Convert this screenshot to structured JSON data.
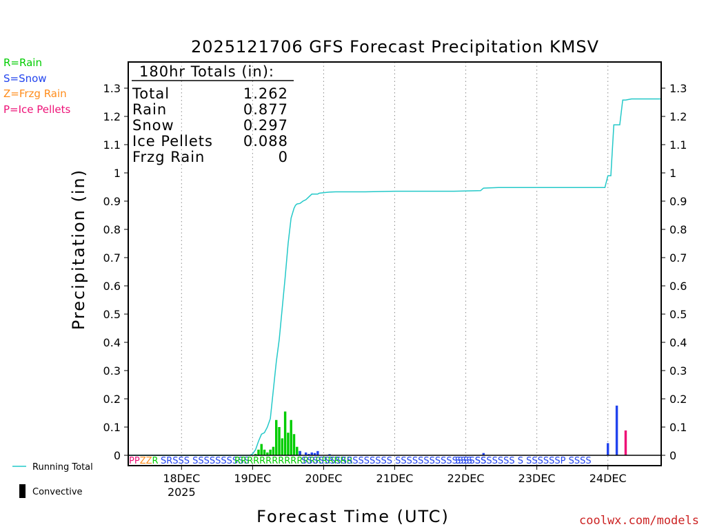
{
  "chart_data": {
    "type": "bar",
    "title": "2025121706 GFS Forecast Precipitation KMSV",
    "ylabel": "Precipitation (in)",
    "xlabel": "Forecast Time (UTC)",
    "ylim": [
      0,
      1.35
    ],
    "yticks": [
      "0",
      "0.1",
      "0.2",
      "0.3",
      "0.4",
      "0.5",
      "0.6",
      "0.7",
      "0.8",
      "0.9",
      "1",
      "1.1",
      "1.2",
      "1.3"
    ],
    "x_range_hours": [
      0,
      180
    ],
    "x_ticks": [
      {
        "hour": 18,
        "label": "18DEC",
        "sublabel": "2025"
      },
      {
        "hour": 42,
        "label": "19DEC",
        "sublabel": ""
      },
      {
        "hour": 66,
        "label": "20DEC",
        "sublabel": ""
      },
      {
        "hour": 90,
        "label": "21DEC",
        "sublabel": ""
      },
      {
        "hour": 114,
        "label": "22DEC",
        "sublabel": ""
      },
      {
        "hour": 138,
        "label": "23DEC",
        "sublabel": ""
      },
      {
        "hour": 162,
        "label": "24DEC",
        "sublabel": ""
      }
    ],
    "precip_type_legend": [
      {
        "code": "R",
        "text": "R=Rain",
        "color": "#00cc00"
      },
      {
        "code": "S",
        "text": "S=Snow",
        "color": "#2244ee"
      },
      {
        "code": "Z",
        "text": "Z=Frzg Rain",
        "color": "#ff8c1a"
      },
      {
        "code": "P",
        "text": "P=Ice Pellets",
        "color": "#ee1177"
      }
    ],
    "totals_box": {
      "header": "180hr Totals (in):",
      "rows": [
        {
          "label": "Total",
          "value": "1.262"
        },
        {
          "label": "Rain",
          "value": "0.877"
        },
        {
          "label": "Snow",
          "value": "0.297"
        },
        {
          "label": "Ice Pellets",
          "value": "0.088"
        },
        {
          "label": "Frzg Rain",
          "value": "0"
        }
      ]
    },
    "series": [
      {
        "name": "Rain (hourly)",
        "type": "R",
        "bars": [
          {
            "hour": 43,
            "value": 0.005
          },
          {
            "hour": 44,
            "value": 0.02
          },
          {
            "hour": 45,
            "value": 0.04
          },
          {
            "hour": 46,
            "value": 0.02
          },
          {
            "hour": 47,
            "value": 0.01
          },
          {
            "hour": 48,
            "value": 0.02
          },
          {
            "hour": 49,
            "value": 0.03
          },
          {
            "hour": 50,
            "value": 0.125
          },
          {
            "hour": 51,
            "value": 0.1
          },
          {
            "hour": 52,
            "value": 0.06
          },
          {
            "hour": 53,
            "value": 0.155
          },
          {
            "hour": 54,
            "value": 0.08
          },
          {
            "hour": 55,
            "value": 0.125
          },
          {
            "hour": 56,
            "value": 0.075
          },
          {
            "hour": 57,
            "value": 0.03
          },
          {
            "hour": 58,
            "value": 0.015
          }
        ]
      },
      {
        "name": "Snow (hourly)",
        "type": "S",
        "bars": [
          {
            "hour": 58,
            "value": 0.015
          },
          {
            "hour": 60,
            "value": 0.01
          },
          {
            "hour": 61,
            "value": 0.005
          },
          {
            "hour": 62,
            "value": 0.01
          },
          {
            "hour": 63,
            "value": 0.008
          },
          {
            "hour": 64,
            "value": 0.015
          },
          {
            "hour": 68,
            "value": 0.004
          },
          {
            "hour": 120,
            "value": 0.008
          },
          {
            "hour": 162,
            "value": 0.043
          },
          {
            "hour": 165,
            "value": 0.176
          }
        ]
      },
      {
        "name": "Ice Pellets (hourly)",
        "type": "P",
        "bars": [
          {
            "hour": 168,
            "value": 0.088
          }
        ]
      }
    ],
    "running_total": {
      "name": "Running Total",
      "hours": [
        0,
        41,
        42,
        43,
        44,
        45,
        46,
        47,
        48,
        49,
        50,
        51,
        52,
        53,
        54,
        55,
        56,
        56.5,
        57,
        58,
        59,
        60,
        61,
        62,
        63,
        64,
        64.5,
        66,
        67,
        68,
        70,
        80,
        90,
        110,
        119,
        120,
        125,
        140,
        160,
        161,
        162,
        163,
        164,
        165,
        166,
        167,
        168,
        169,
        170,
        172,
        175,
        180
      ],
      "values": [
        0,
        0,
        0.005,
        0.02,
        0.05,
        0.075,
        0.08,
        0.1,
        0.13,
        0.23,
        0.33,
        0.41,
        0.52,
        0.63,
        0.75,
        0.84,
        0.875,
        0.885,
        0.89,
        0.892,
        0.9,
        0.905,
        0.915,
        0.925,
        0.925,
        0.925,
        0.928,
        0.93,
        0.931,
        0.932,
        0.933,
        0.933,
        0.935,
        0.935,
        0.937,
        0.946,
        0.948,
        0.948,
        0.948,
        0.948,
        0.99,
        0.99,
        1.17,
        1.17,
        1.17,
        1.258,
        1.258,
        1.26,
        1.262,
        1.262,
        1.262,
        1.262
      ]
    },
    "ptype_strip": [
      {
        "text": "PPZZR",
        "colors": [
          "#ee1177",
          "#ee1177",
          "#ff8c1a",
          "#ff8c1a",
          "#00cc00"
        ]
      },
      {
        "text": "SRSSS SSSSSSSSSS",
        "color": "#2244ee"
      },
      {
        "text": "RRRRRRRRRRRRRRRRRRR",
        "color": "#00cc00"
      },
      {
        "text": "SSSSSSSSSSSSSSSS SSSSSSSSSSSSSSSS",
        "color": "#2244ee"
      },
      {
        "text": "SSS SSSSSSS S SSSSSSP SSSS",
        "color": "#2244ee"
      }
    ],
    "legend_lines": {
      "running_total": "Running Total",
      "convective": "Convective"
    },
    "colors": {
      "rain": "#00cc00",
      "snow": "#2244ee",
      "ice_pellets": "#ee1177",
      "running_total": "#22c8c8",
      "grid": "#888888"
    },
    "credit": "coolwx.com/models"
  }
}
